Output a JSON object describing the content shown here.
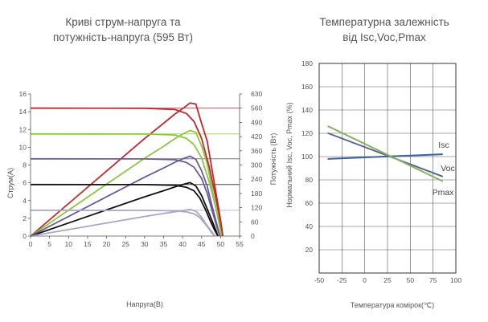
{
  "chart_data": [
    {
      "type": "line",
      "title_lines": [
        "Криві струм-напруга та",
        "потужність-напруга (595 Вт)"
      ],
      "xlabel": "Напруга(В)",
      "ylabel": "Струм(A)",
      "y2label": "Потужність (Вт)",
      "xlim": [
        0,
        55
      ],
      "ylim": [
        0,
        16
      ],
      "y2lim": [
        0,
        630
      ],
      "xticks": [
        "0",
        "5",
        "10",
        "15",
        "20",
        "25",
        "30",
        "35",
        "40",
        "45",
        "50",
        "55"
      ],
      "yticks": [
        "0",
        "2",
        "4",
        "6",
        "8",
        "10",
        "12",
        "14",
        "16"
      ],
      "y2ticks": [
        "0",
        "60",
        "120",
        "180",
        "240",
        "300",
        "360",
        "420",
        "490",
        "560",
        "630"
      ],
      "grid": false,
      "iv_curves": [
        {
          "color": "#c0282d",
          "isc": 14.4,
          "voc": 50.6,
          "points": [
            [
              0,
              14.4
            ],
            [
              30,
              14.39
            ],
            [
              38,
              14.25
            ],
            [
              41,
              13.8
            ],
            [
              43,
              12.9
            ],
            [
              45,
              11.0
            ],
            [
              47,
              7.8
            ],
            [
              48.5,
              4.8
            ],
            [
              49.5,
              2.6
            ],
            [
              50.1,
              1.2
            ],
            [
              50.6,
              0
            ]
          ]
        },
        {
          "color": "#8cc63f",
          "isc": 11.5,
          "voc": 50.2,
          "points": [
            [
              0,
              11.5
            ],
            [
              30,
              11.49
            ],
            [
              38,
              11.38
            ],
            [
              41,
              11.0
            ],
            [
              43,
              10.3
            ],
            [
              45,
              8.8
            ],
            [
              47,
              6.1
            ],
            [
              48.5,
              3.6
            ],
            [
              49.5,
              1.8
            ],
            [
              49.9,
              0.8
            ],
            [
              50.2,
              0
            ]
          ]
        },
        {
          "color": "#6a5b9a",
          "isc": 8.7,
          "voc": 49.8,
          "points": [
            [
              0,
              8.7
            ],
            [
              30,
              8.69
            ],
            [
              38,
              8.6
            ],
            [
              41,
              8.3
            ],
            [
              43,
              7.75
            ],
            [
              45,
              6.5
            ],
            [
              46.5,
              4.8
            ],
            [
              47.8,
              2.8
            ],
            [
              48.9,
              1.2
            ],
            [
              49.4,
              0.5
            ],
            [
              49.8,
              0
            ]
          ]
        },
        {
          "color": "#111111",
          "isc": 5.8,
          "voc": 49.3,
          "points": [
            [
              0,
              5.8
            ],
            [
              30,
              5.79
            ],
            [
              38,
              5.72
            ],
            [
              41,
              5.5
            ],
            [
              43,
              5.1
            ],
            [
              44.5,
              4.3
            ],
            [
              46,
              3.0
            ],
            [
              47.3,
              1.7
            ],
            [
              48.4,
              0.7
            ],
            [
              48.9,
              0.3
            ],
            [
              49.3,
              0
            ]
          ]
        },
        {
          "color": "#a9a5c8",
          "isc": 2.9,
          "voc": 48.5,
          "points": [
            [
              0,
              2.9
            ],
            [
              30,
              2.89
            ],
            [
              38,
              2.85
            ],
            [
              41,
              2.72
            ],
            [
              43,
              2.5
            ],
            [
              44.5,
              2.1
            ],
            [
              45.7,
              1.5
            ],
            [
              46.8,
              0.9
            ],
            [
              47.6,
              0.4
            ],
            [
              48.1,
              0.15
            ],
            [
              48.5,
              0
            ]
          ]
        }
      ],
      "pv_curves": [
        {
          "color": "#c0282d",
          "pmax": 595,
          "points": [
            [
              0,
              0
            ],
            [
              10,
              144
            ],
            [
              20,
              288
            ],
            [
              30,
              432
            ],
            [
              35,
              500
            ],
            [
              38,
              541
            ],
            [
              40,
              565
            ],
            [
              42,
              590
            ],
            [
              43.5,
              585
            ],
            [
              45,
              500
            ],
            [
              46.5,
              420
            ],
            [
              48,
              270
            ],
            [
              49.3,
              140
            ],
            [
              50,
              70
            ],
            [
              50.6,
              0
            ]
          ]
        },
        {
          "color": "#8cc63f",
          "pmax": 470,
          "points": [
            [
              0,
              0
            ],
            [
              10,
              115
            ],
            [
              20,
              230
            ],
            [
              30,
              345
            ],
            [
              35,
              398
            ],
            [
              38,
              432
            ],
            [
              40,
              452
            ],
            [
              42,
              468
            ],
            [
              43.5,
              460
            ],
            [
              45,
              400
            ],
            [
              46.5,
              320
            ],
            [
              48,
              190
            ],
            [
              49.3,
              80
            ],
            [
              49.8,
              40
            ],
            [
              50.2,
              0
            ]
          ]
        },
        {
          "color": "#6a5b9a",
          "pmax": 355,
          "points": [
            [
              0,
              0
            ],
            [
              10,
              87
            ],
            [
              20,
              174
            ],
            [
              30,
              261
            ],
            [
              35,
              302
            ],
            [
              38,
              327
            ],
            [
              40,
              342
            ],
            [
              42,
              354
            ],
            [
              43.5,
              340
            ],
            [
              45,
              290
            ],
            [
              46.5,
              220
            ],
            [
              47.8,
              130
            ],
            [
              48.9,
              60
            ],
            [
              49.8,
              0
            ]
          ]
        },
        {
          "color": "#111111",
          "pmax": 238,
          "points": [
            [
              0,
              0
            ],
            [
              10,
              58
            ],
            [
              20,
              116
            ],
            [
              30,
              174
            ],
            [
              35,
              201
            ],
            [
              38,
              218
            ],
            [
              40,
              228
            ],
            [
              42,
              237
            ],
            [
              43.5,
              222
            ],
            [
              45,
              180
            ],
            [
              46.5,
              120
            ],
            [
              47.8,
              66
            ],
            [
              48.7,
              28
            ],
            [
              49.3,
              0
            ]
          ]
        },
        {
          "color": "#a9a5c8",
          "pmax": 120,
          "points": [
            [
              0,
              0
            ],
            [
              10,
              29
            ],
            [
              20,
              58
            ],
            [
              30,
              87
            ],
            [
              35,
              100
            ],
            [
              38,
              108
            ],
            [
              40,
              113
            ],
            [
              42,
              118
            ],
            [
              43.5,
              110
            ],
            [
              44.8,
              88
            ],
            [
              46,
              58
            ],
            [
              47.2,
              30
            ],
            [
              48,
              12
            ],
            [
              48.5,
              0
            ]
          ]
        }
      ]
    },
    {
      "type": "line",
      "title_lines": [
        "Температурна залежність",
        "від Isc,Voc,Pmax"
      ],
      "xlabel": "Температура комірок(℃)",
      "ylabel": "Нормальний Isc, Voc, Pmax (%)",
      "xlim": [
        -50,
        100
      ],
      "ylim": [
        0,
        180
      ],
      "xticks": [
        "-50",
        "-25",
        "0",
        "25",
        "50",
        "75",
        "100"
      ],
      "yticks": [
        "20",
        "40",
        "60",
        "80",
        "100",
        "120",
        "140",
        "160",
        "180"
      ],
      "grid": true,
      "series": [
        {
          "name": "Isc",
          "color": "#3f5f9e",
          "x": [
            -40,
            85
          ],
          "y": [
            98,
            102
          ]
        },
        {
          "name": "Voc",
          "color": "#5b6594",
          "x": [
            -40,
            85
          ],
          "y": [
            120,
            83
          ]
        },
        {
          "name": "Pmax",
          "color": "#86b35c",
          "x": [
            -40,
            85
          ],
          "y": [
            126,
            79
          ]
        }
      ]
    }
  ]
}
